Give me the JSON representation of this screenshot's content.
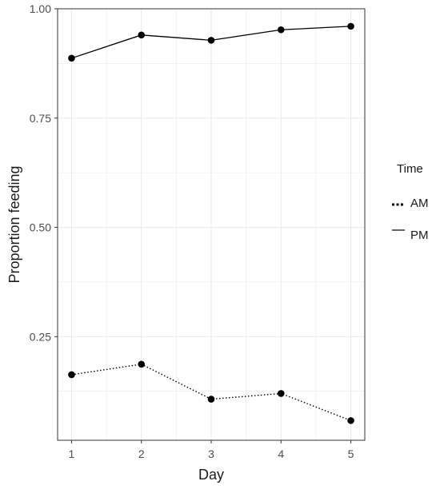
{
  "chart_data": {
    "type": "line",
    "x": [
      1,
      2,
      3,
      4,
      5
    ],
    "series": [
      {
        "name": "AM",
        "linestyle": "dotted",
        "values": [
          0.163,
          0.187,
          0.107,
          0.12,
          0.058
        ]
      },
      {
        "name": "PM",
        "linestyle": "solid",
        "values": [
          0.887,
          0.94,
          0.928,
          0.952,
          0.96
        ]
      }
    ],
    "title": "",
    "xlabel": "Day",
    "ylabel": "Proportion feeding",
    "xlim": [
      0.8,
      5.2
    ],
    "ylim": [
      0.013,
      1.0
    ],
    "xticks": [
      1,
      2,
      3,
      4,
      5
    ],
    "xtick_labels": [
      "1",
      "2",
      "3",
      "4",
      "5"
    ],
    "yticks": [
      0.25,
      0.5,
      0.75,
      1.0
    ],
    "ytick_labels": [
      "0.25",
      "0.50",
      "0.75",
      "1.00"
    ],
    "grid": true,
    "legend": {
      "title": "Time",
      "placement": "right",
      "entries": [
        "AM",
        "PM"
      ]
    },
    "colors": {
      "series": "#000000",
      "panel_border": "#333333",
      "grid": "#ebebeb",
      "tick_text": "#4d4d4d",
      "axis_title": "#1a1a1a"
    }
  }
}
